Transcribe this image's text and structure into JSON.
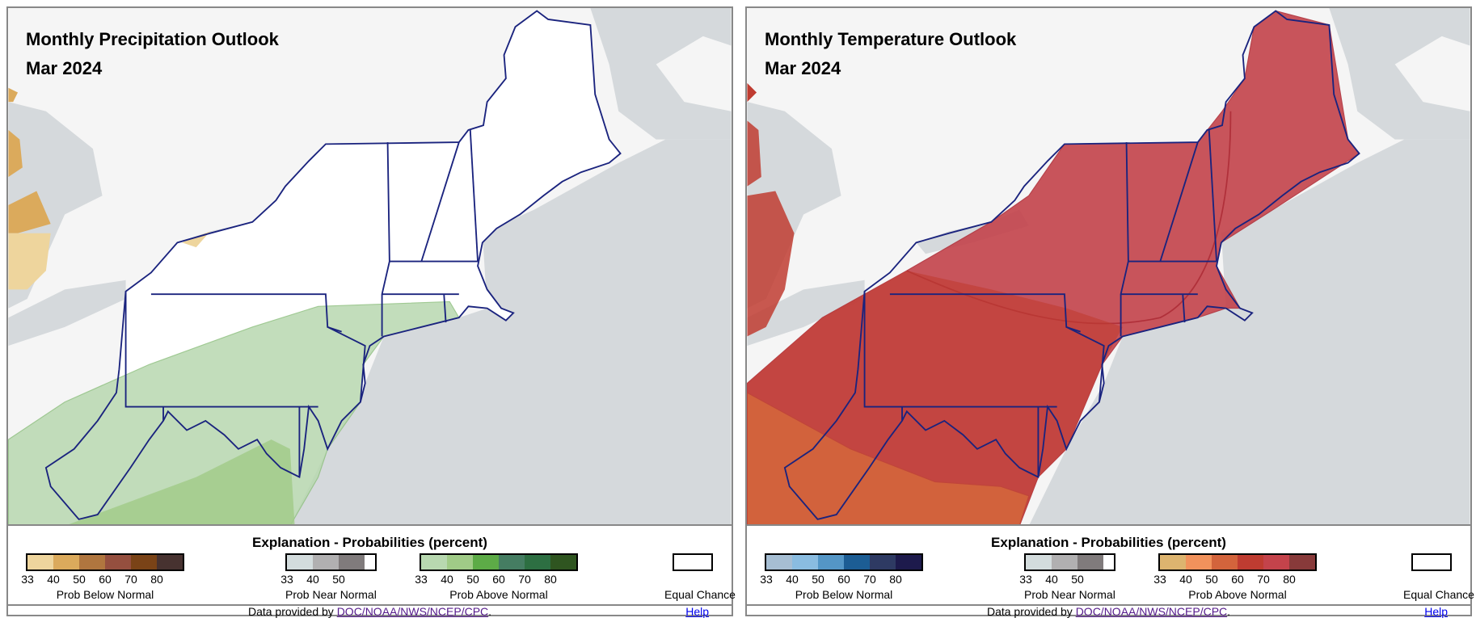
{
  "panels": [
    {
      "title": "Monthly Precipitation Outlook",
      "period": "Mar 2024",
      "type": "precipitation",
      "legend": {
        "title": "Explanation - Probabilities (percent)",
        "groups": [
          {
            "caption": "Prob Below Normal",
            "ticks": [
              "33",
              "40",
              "50",
              "60",
              "70",
              "80"
            ],
            "colors": [
              "#eed59d",
              "#dbaa5c",
              "#b0763f",
              "#954f3f",
              "#7a4317",
              "#473230"
            ]
          },
          {
            "caption": "Prob Near Normal",
            "ticks": [
              "33",
              "40",
              "50"
            ],
            "colors": [
              "#d3dcdd",
              "#b1b0b1",
              "#807b7c"
            ]
          },
          {
            "caption": "Prob Above Normal",
            "ticks": [
              "33",
              "40",
              "50",
              "60",
              "70",
              "80"
            ],
            "colors": [
              "#b8d8b0",
              "#a0cb87",
              "#5dab47",
              "#457d62",
              "#2d6f42",
              "#2f5520"
            ]
          }
        ],
        "equal_chance": "Equal Chance"
      },
      "footer": {
        "prefix": "Data provided by ",
        "link": "DOC/NOAA/NWS/NCEP/CPC",
        "suffix": ".",
        "help": "Help"
      },
      "colors": {
        "main": "#b8d8b0",
        "second": "#a0cb87",
        "edge1": "#dbaa5c",
        "edge2": "#eed59d"
      }
    },
    {
      "title": "Monthly Temperature Outlook",
      "period": "Mar 2024",
      "type": "temperature",
      "legend": {
        "title": "Explanation - Probabilities (percent)",
        "groups": [
          {
            "caption": "Prob Below Normal",
            "ticks": [
              "33",
              "40",
              "50",
              "60",
              "70",
              "80"
            ],
            "colors": [
              "#a6bed3",
              "#8abce0",
              "#5496c6",
              "#1c5d94",
              "#2e3a63",
              "#1d1a4c"
            ]
          },
          {
            "caption": "Prob Near Normal",
            "ticks": [
              "33",
              "40",
              "50"
            ],
            "colors": [
              "#d3dcdd",
              "#b1b0b1",
              "#807b7c"
            ]
          },
          {
            "caption": "Prob Above Normal",
            "ticks": [
              "33",
              "40",
              "50",
              "60",
              "70",
              "80"
            ],
            "colors": [
              "#ddb46f",
              "#f1925c",
              "#d3643c",
              "#bf3c31",
              "#c4434b",
              "#883a3a"
            ]
          }
        ],
        "equal_chance": "Equal Chance"
      },
      "footer": {
        "prefix": "Data provided by ",
        "link": "DOC/NOAA/NWS/NCEP/CPC",
        "suffix": ".",
        "help": "Help"
      },
      "colors": {
        "main": "#c4434b",
        "second": "#bf3c31",
        "edge1": "#d3643c",
        "edge2": "#bf3c31"
      }
    }
  ]
}
